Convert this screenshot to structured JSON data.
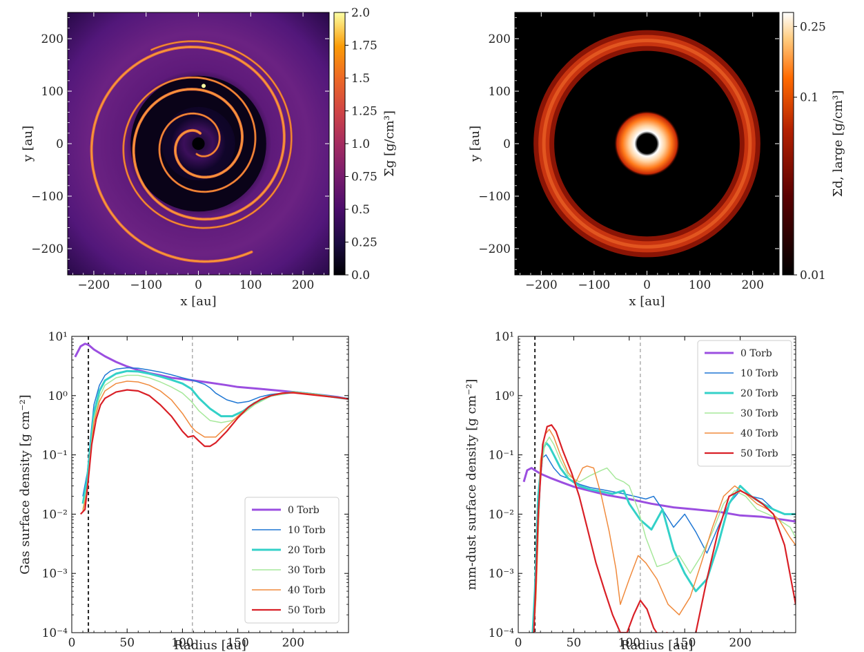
{
  "chart_data": [
    {
      "type": "heatmap",
      "panel": "top-left",
      "xlabel": "x [au]",
      "ylabel": "y [au]",
      "xlim": [
        -250,
        250
      ],
      "ylim": [
        -250,
        250
      ],
      "xticks": [
        "−200",
        "−100",
        "0",
        "100",
        "200"
      ],
      "yticks": [
        "200",
        "100",
        "0",
        "−100",
        "−200"
      ],
      "colorbar": {
        "label": "Σg [g/cm³]",
        "range": [
          0.0,
          2.0
        ],
        "scale": "linear",
        "ticks": [
          "0.0",
          "0.25",
          "0.5",
          "0.75",
          "1.0",
          "1.25",
          "1.5",
          "1.75",
          "2.0"
        ],
        "colormap": "inferno"
      },
      "description_features": {
        "spiral_arms": 2,
        "central_cavity_radius_au": 15,
        "planet_location_au": [
          10,
          110
        ]
      }
    },
    {
      "type": "heatmap",
      "panel": "top-right",
      "xlabel": "x [au]",
      "ylabel": "y [au]",
      "xlim": [
        -250,
        250
      ],
      "ylim": [
        -250,
        250
      ],
      "xticks": [
        "−200",
        "−100",
        "0",
        "100",
        "200"
      ],
      "yticks": [
        "200",
        "100",
        "0",
        "−100",
        "−200"
      ],
      "colorbar": {
        "label": "Σd, large [g/cm³]",
        "range": [
          0.01,
          0.3
        ],
        "scale": "log",
        "ticks": [
          "0.01",
          "0.1",
          "0.25"
        ],
        "colormap": "gist_heat"
      },
      "description_features": {
        "inner_ring_radius_au": 35,
        "outer_ring_radius_au": 195
      }
    },
    {
      "type": "line",
      "panel": "bottom-left",
      "xlabel": "Radius [au]",
      "ylabel": "Gas surface density [g cm⁻²]",
      "xlim": [
        0,
        250
      ],
      "ylim": [
        0.0001,
        10
      ],
      "yscale": "log",
      "xticks": [
        "0",
        "50",
        "100",
        "150",
        "200"
      ],
      "yticks": [
        "10¹",
        "10⁰",
        "10⁻¹",
        "10⁻²",
        "10⁻³",
        "10⁻⁴"
      ],
      "vlines": [
        15,
        109
      ],
      "legend_position": "lower-right",
      "series": [
        {
          "name": "0 Torb",
          "color": "#9b4ee0",
          "width": 3,
          "x": [
            3,
            8,
            12,
            15,
            20,
            30,
            40,
            50,
            60,
            70,
            80,
            90,
            100,
            110,
            120,
            130,
            140,
            150,
            160,
            170,
            180,
            190,
            200,
            210,
            220,
            230,
            240,
            250
          ],
          "values": [
            4.5,
            6.8,
            7.5,
            7.2,
            6.0,
            4.6,
            3.7,
            3.1,
            2.7,
            2.4,
            2.2,
            2.0,
            1.9,
            1.8,
            1.7,
            1.6,
            1.5,
            1.4,
            1.35,
            1.3,
            1.25,
            1.2,
            1.15,
            1.1,
            1.05,
            1.0,
            0.95,
            0.88
          ]
        },
        {
          "name": "10 Torb",
          "color": "#1f77d4",
          "width": 1.5,
          "x": [
            10,
            14,
            17,
            20,
            25,
            30,
            35,
            40,
            50,
            60,
            70,
            80,
            90,
            100,
            110,
            120,
            125,
            130,
            140,
            150,
            160,
            170,
            180,
            190,
            200,
            210,
            220,
            230,
            240,
            250
          ],
          "values": [
            0.02,
            0.05,
            0.2,
            0.7,
            1.5,
            2.2,
            2.6,
            2.8,
            2.95,
            2.9,
            2.7,
            2.5,
            2.25,
            2.0,
            1.8,
            1.55,
            1.35,
            1.1,
            0.85,
            0.75,
            0.8,
            0.95,
            1.05,
            1.1,
            1.12,
            1.08,
            1.02,
            0.97,
            0.92,
            0.88
          ]
        },
        {
          "name": "20 Torb",
          "color": "#33d1c8",
          "width": 3,
          "x": [
            10,
            14,
            17,
            20,
            25,
            30,
            40,
            50,
            60,
            70,
            80,
            90,
            100,
            108,
            115,
            125,
            135,
            145,
            155,
            165,
            180,
            200,
            220,
            240,
            250
          ],
          "values": [
            0.015,
            0.04,
            0.15,
            0.5,
            1.2,
            1.8,
            2.35,
            2.6,
            2.55,
            2.35,
            2.1,
            1.85,
            1.6,
            1.3,
            0.9,
            0.6,
            0.45,
            0.45,
            0.55,
            0.75,
            1.0,
            1.15,
            1.05,
            0.93,
            0.88
          ]
        },
        {
          "name": "30 Torb",
          "color": "#a6e89a",
          "width": 1.5,
          "x": [
            10,
            14,
            17,
            20,
            25,
            30,
            40,
            50,
            60,
            70,
            80,
            90,
            100,
            108,
            115,
            125,
            135,
            145,
            155,
            165,
            180,
            200,
            220,
            240,
            250
          ],
          "values": [
            0.012,
            0.03,
            0.12,
            0.4,
            0.95,
            1.5,
            2.0,
            2.2,
            2.2,
            2.0,
            1.7,
            1.4,
            1.1,
            0.8,
            0.55,
            0.38,
            0.35,
            0.38,
            0.5,
            0.7,
            0.98,
            1.15,
            1.05,
            0.93,
            0.88
          ]
        },
        {
          "name": "40 Torb",
          "color": "#f08a3c",
          "width": 1.5,
          "x": [
            10,
            14,
            17,
            20,
            25,
            30,
            40,
            50,
            60,
            70,
            80,
            90,
            100,
            108,
            112,
            120,
            130,
            140,
            150,
            160,
            170,
            180,
            200,
            220,
            240,
            250
          ],
          "values": [
            0.011,
            0.025,
            0.1,
            0.35,
            0.8,
            1.2,
            1.6,
            1.75,
            1.7,
            1.5,
            1.2,
            0.85,
            0.5,
            0.3,
            0.25,
            0.2,
            0.2,
            0.3,
            0.45,
            0.65,
            0.85,
            1.0,
            1.15,
            1.05,
            0.93,
            0.88
          ]
        },
        {
          "name": "50 Torb",
          "color": "#d91f26",
          "width": 2.2,
          "x": [
            8,
            12,
            15,
            18,
            22,
            26,
            30,
            40,
            50,
            60,
            70,
            80,
            90,
            100,
            105,
            110,
            115,
            120,
            125,
            130,
            140,
            150,
            160,
            170,
            180,
            190,
            200,
            220,
            240,
            250
          ],
          "values": [
            0.01,
            0.012,
            0.04,
            0.15,
            0.4,
            0.7,
            0.9,
            1.15,
            1.25,
            1.2,
            1.0,
            0.7,
            0.45,
            0.25,
            0.2,
            0.21,
            0.17,
            0.14,
            0.14,
            0.16,
            0.25,
            0.42,
            0.65,
            0.85,
            1.0,
            1.1,
            1.12,
            1.02,
            0.93,
            0.88
          ]
        }
      ]
    },
    {
      "type": "line",
      "panel": "bottom-right",
      "xlabel": "Radius [au]",
      "ylabel": "mm-dust surface density [g cm⁻²]",
      "xlim": [
        0,
        250
      ],
      "ylim": [
        0.0001,
        10
      ],
      "yscale": "log",
      "xticks": [
        "0",
        "50",
        "100",
        "150",
        "200"
      ],
      "yticks": [
        "10¹",
        "10⁰",
        "10⁻¹",
        "10⁻²",
        "10⁻³",
        "10⁻⁴"
      ],
      "vlines": [
        15,
        110
      ],
      "legend_position": "upper-right",
      "series": [
        {
          "name": "0 Torb",
          "color": "#9b4ee0",
          "width": 3,
          "x": [
            5,
            8,
            12,
            15,
            20,
            30,
            40,
            50,
            60,
            80,
            100,
            120,
            140,
            160,
            180,
            200,
            220,
            240,
            250
          ],
          "values": [
            0.035,
            0.055,
            0.06,
            0.055,
            0.048,
            0.04,
            0.034,
            0.029,
            0.026,
            0.021,
            0.018,
            0.015,
            0.013,
            0.012,
            0.011,
            0.0095,
            0.009,
            0.008,
            0.0075
          ]
        },
        {
          "name": "10 Torb",
          "color": "#1f77d4",
          "width": 1.5,
          "x": [
            13,
            15,
            18,
            20,
            22,
            25,
            28,
            32,
            38,
            45,
            55,
            65,
            75,
            85,
            95,
            105,
            115,
            122,
            130,
            140,
            150,
            160,
            170,
            180,
            190,
            200,
            210,
            220,
            230,
            240,
            250
          ],
          "values": [
            0.0001,
            0.0003,
            0.005,
            0.04,
            0.09,
            0.1,
            0.08,
            0.06,
            0.045,
            0.04,
            0.032,
            0.028,
            0.026,
            0.024,
            0.022,
            0.02,
            0.018,
            0.02,
            0.012,
            0.006,
            0.01,
            0.005,
            0.0022,
            0.006,
            0.015,
            0.025,
            0.02,
            0.018,
            0.012,
            0.01,
            0.01
          ]
        },
        {
          "name": "20 Torb",
          "color": "#33d1c8",
          "width": 3,
          "x": [
            13,
            15,
            18,
            22,
            25,
            28,
            32,
            38,
            45,
            55,
            65,
            75,
            85,
            95,
            100,
            110,
            120,
            130,
            140,
            150,
            160,
            170,
            180,
            190,
            200,
            210,
            220,
            230,
            240,
            250
          ],
          "values": [
            0.0001,
            0.0005,
            0.02,
            0.12,
            0.16,
            0.14,
            0.1,
            0.06,
            0.04,
            0.03,
            0.026,
            0.024,
            0.022,
            0.025,
            0.015,
            0.008,
            0.0055,
            0.012,
            0.0025,
            0.001,
            0.0005,
            0.0008,
            0.003,
            0.015,
            0.03,
            0.02,
            0.015,
            0.012,
            0.01,
            0.01
          ]
        },
        {
          "name": "30 Torb",
          "color": "#a6e89a",
          "width": 1.5,
          "x": [
            14,
            16,
            20,
            24,
            28,
            32,
            38,
            45,
            55,
            65,
            75,
            80,
            88,
            95,
            100,
            108,
            115,
            125,
            135,
            145,
            155,
            165,
            175,
            185,
            195,
            205,
            215,
            225,
            235,
            245,
            250
          ],
          "values": [
            0.0001,
            0.0004,
            0.05,
            0.15,
            0.2,
            0.15,
            0.08,
            0.045,
            0.035,
            0.045,
            0.055,
            0.06,
            0.04,
            0.035,
            0.03,
            0.012,
            0.004,
            0.0013,
            0.0015,
            0.002,
            0.001,
            0.002,
            0.005,
            0.015,
            0.025,
            0.02,
            0.012,
            0.01,
            0.008,
            0.006,
            0.004
          ]
        },
        {
          "name": "40 Torb",
          "color": "#f08a3c",
          "width": 1.5,
          "x": [
            14,
            16,
            20,
            24,
            28,
            32,
            38,
            45,
            52,
            58,
            62,
            68,
            75,
            82,
            88,
            92,
            100,
            108,
            115,
            125,
            135,
            145,
            155,
            165,
            175,
            185,
            195,
            205,
            215,
            225,
            235,
            245,
            250
          ],
          "values": [
            0.0001,
            0.0004,
            0.08,
            0.22,
            0.27,
            0.2,
            0.1,
            0.05,
            0.035,
            0.06,
            0.065,
            0.06,
            0.02,
            0.005,
            0.0012,
            0.0003,
            0.0008,
            0.002,
            0.0015,
            0.0008,
            0.0003,
            0.0002,
            0.0004,
            0.0015,
            0.006,
            0.02,
            0.03,
            0.022,
            0.015,
            0.012,
            0.008,
            0.004,
            0.003
          ]
        },
        {
          "name": "50 Torb",
          "color": "#d91f26",
          "width": 2.2,
          "x": [
            14,
            16,
            18,
            22,
            26,
            30,
            34,
            40,
            48,
            55,
            62,
            70,
            78,
            85,
            92,
            98,
            104,
            110,
            116,
            122,
            128,
            134,
            140,
            150,
            160,
            170,
            180,
            190,
            200,
            210,
            220,
            230,
            240,
            250
          ],
          "values": [
            0.0001,
            0.0008,
            0.01,
            0.15,
            0.3,
            0.32,
            0.25,
            0.12,
            0.05,
            0.02,
            0.006,
            0.0015,
            0.0005,
            0.0002,
            0.0001,
            0.0001,
            0.0002,
            0.00035,
            0.00025,
            0.00012,
            8e-05,
            0.0001,
            7e-05,
            6e-05,
            0.0001,
            0.0008,
            0.005,
            0.02,
            0.025,
            0.02,
            0.015,
            0.01,
            0.003,
            0.0003
          ]
        }
      ]
    }
  ]
}
